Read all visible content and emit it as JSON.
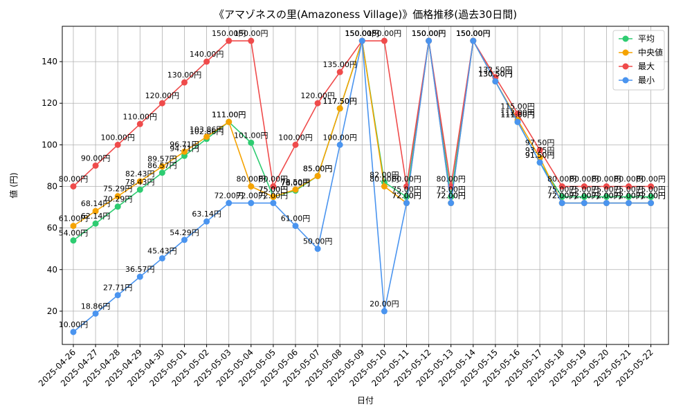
{
  "chart_data": {
    "type": "line",
    "title": "《アマゾネスの里(Amazoness Village)》価格推移(過去30日間)",
    "xlabel": "日付",
    "ylabel": "値 (円)",
    "ylim": [
      4,
      157
    ],
    "yticks": [
      20,
      40,
      60,
      80,
      100,
      120,
      140
    ],
    "grid": true,
    "legend_position": "top-right",
    "value_suffix": "円",
    "categories": [
      "2025-04-26",
      "2025-04-27",
      "2025-04-28",
      "2025-04-29",
      "2025-04-30",
      "2025-05-01",
      "2025-05-02",
      "2025-05-03",
      "2025-05-04",
      "2025-05-05",
      "2025-05-06",
      "2025-05-07",
      "2025-05-08",
      "2025-05-09",
      "2025-05-10",
      "2025-05-11",
      "2025-05-12",
      "2025-05-13",
      "2025-05-14",
      "2025-05-15",
      "2025-05-16",
      "2025-05-17",
      "2025-05-18",
      "2025-05-19",
      "2025-05-20",
      "2025-05-21",
      "2025-05-22"
    ],
    "series": [
      {
        "name": "平均",
        "color": "#2ecc71",
        "values": [
          54.0,
          62.14,
          70.29,
          78.43,
          86.57,
          94.71,
          102.86,
          111.0,
          101.0,
          75.0,
          78.0,
          85.0,
          117.5,
          150.0,
          82.0,
          75.0,
          150.0,
          75.0,
          150.0,
          130.5,
          111.0,
          91.5,
          75.0,
          75.0,
          75.0,
          75.0,
          75.0
        ]
      },
      {
        "name": "中央値",
        "color": "#f5a300",
        "values": [
          61.0,
          68.14,
          75.29,
          82.43,
          89.57,
          96.71,
          103.86,
          111.0,
          80.0,
          75.0,
          78.5,
          85.0,
          117.5,
          150.0,
          80.0,
          72.0,
          150.0,
          72.0,
          150.0,
          130.5,
          112.0,
          93.75,
          72.0,
          72.0,
          72.0,
          72.0,
          72.0
        ]
      },
      {
        "name": "最大",
        "color": "#ef4b4b",
        "values": [
          80.0,
          90.0,
          100.0,
          110.0,
          120.0,
          130.0,
          140.0,
          150.0,
          150.0,
          80.0,
          100.0,
          120.0,
          135.0,
          150.0,
          150.0,
          80.0,
          150.0,
          80.0,
          150.0,
          132.5,
          115.0,
          97.5,
          80.0,
          80.0,
          80.0,
          80.0,
          80.0
        ]
      },
      {
        "name": "最小",
        "color": "#4a94ef",
        "values": [
          10.0,
          18.86,
          27.71,
          36.57,
          45.43,
          54.29,
          63.14,
          72.0,
          72.0,
          72.0,
          61.0,
          50.0,
          100.0,
          150.0,
          20.0,
          72.0,
          150.0,
          72.0,
          150.0,
          130.5,
          111.0,
          91.5,
          72.0,
          72.0,
          72.0,
          72.0,
          72.0
        ]
      }
    ]
  }
}
